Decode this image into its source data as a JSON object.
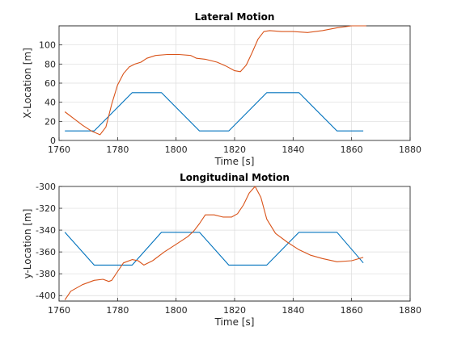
{
  "chart_data": [
    {
      "type": "line",
      "title": "Lateral Motion",
      "xlabel": "Time [s]",
      "ylabel": "X-Location [m]",
      "xlim": [
        1760,
        1880
      ],
      "ylim": [
        0,
        120
      ],
      "xticks": [
        1760,
        1780,
        1800,
        1820,
        1840,
        1860,
        1880
      ],
      "yticks": [
        0,
        20,
        40,
        60,
        80,
        100
      ],
      "grid": true,
      "series": [
        {
          "color": "#0072bd",
          "x": [
            1762,
            1772,
            1785,
            1795,
            1808,
            1818,
            1831,
            1842,
            1855,
            1864
          ],
          "y": [
            10,
            10,
            50,
            50,
            10,
            10,
            50,
            50,
            10,
            10
          ]
        },
        {
          "color": "#d95319",
          "x": [
            1762,
            1765,
            1768,
            1771,
            1774,
            1776,
            1778,
            1780,
            1782,
            1784,
            1786,
            1788,
            1790,
            1793,
            1797,
            1801,
            1805,
            1807,
            1810,
            1814,
            1817,
            1820,
            1822,
            1824,
            1826,
            1828,
            1830,
            1832,
            1836,
            1840,
            1845,
            1850,
            1855,
            1860,
            1865
          ],
          "y": [
            30,
            23,
            16,
            10,
            6,
            14,
            38,
            58,
            70,
            77,
            80,
            82,
            86,
            89,
            90,
            90,
            89,
            86,
            85,
            82,
            78,
            73,
            72,
            79,
            92,
            106,
            114,
            115,
            114,
            114,
            113,
            115,
            118,
            120,
            120
          ]
        }
      ]
    },
    {
      "type": "line",
      "title": "Longitudinal Motion",
      "xlabel": "Time [s]",
      "ylabel": "y-Location [m]",
      "xlim": [
        1760,
        1880
      ],
      "ylim": [
        -405,
        -300
      ],
      "xticks": [
        1760,
        1780,
        1800,
        1820,
        1840,
        1860,
        1880
      ],
      "yticks": [
        -400,
        -380,
        -360,
        -340,
        -320,
        -300
      ],
      "grid": true,
      "series": [
        {
          "color": "#0072bd",
          "x": [
            1762,
            1772,
            1785,
            1795,
            1808,
            1818,
            1831,
            1842,
            1855,
            1864
          ],
          "y": [
            -342,
            -372,
            -372,
            -342,
            -342,
            -372,
            -372,
            -342,
            -342,
            -370
          ]
        },
        {
          "color": "#d95319",
          "x": [
            1762,
            1764,
            1768,
            1772,
            1775,
            1777,
            1778,
            1780,
            1782,
            1785,
            1787,
            1789,
            1792,
            1796,
            1800,
            1804,
            1806,
            1808,
            1810,
            1813,
            1816,
            1819,
            1821,
            1823,
            1825,
            1827,
            1829,
            1831,
            1834,
            1838,
            1842,
            1846,
            1850,
            1855,
            1860,
            1864
          ],
          "y": [
            -404,
            -396,
            -390,
            -386,
            -385,
            -387,
            -386,
            -378,
            -370,
            -367,
            -368,
            -372,
            -368,
            -360,
            -353,
            -346,
            -341,
            -334,
            -326,
            -326,
            -328,
            -328,
            -325,
            -317,
            -306,
            -300,
            -310,
            -330,
            -343,
            -351,
            -358,
            -363,
            -366,
            -369,
            -368,
            -365
          ]
        }
      ]
    }
  ]
}
